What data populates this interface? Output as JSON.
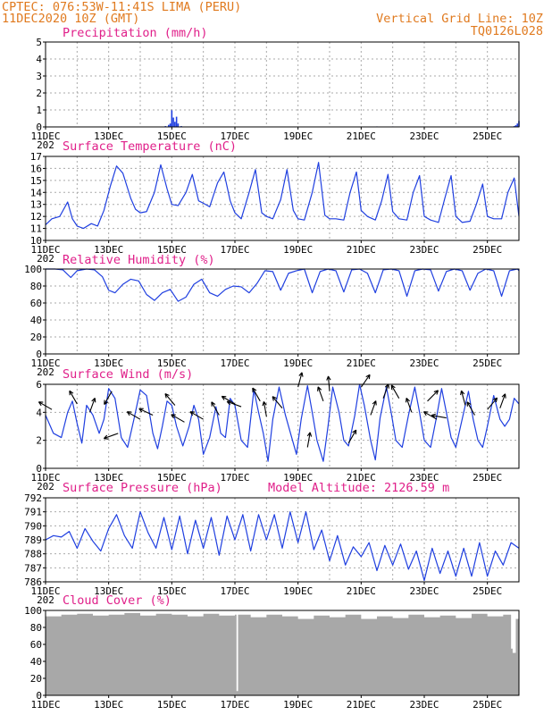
{
  "header": {
    "line1_left": "CPTEC:   076:53W-11:41S  LIMA (PERU)",
    "line2_left": "11DEC2020 10Z (GMT)",
    "line2_right": "Vertical Grid Line: 10Z",
    "line3_right": "TQ0126L028"
  },
  "colors": {
    "header": "#e07a1f",
    "panel_title": "#e0208a",
    "series": "#1f3fe0",
    "cloud": "#a8a8a8",
    "grid": "#aaaaaa"
  },
  "x_axis": {
    "start": "11DEC2020 10Z",
    "end": "26DEC2020 10Z",
    "unit": "days",
    "tick_labels": [
      "11DEC",
      "13DEC",
      "15DEC",
      "17DEC",
      "19DEC",
      "21DEC",
      "23DEC",
      "25DEC"
    ],
    "tick_days": [
      0,
      2,
      4,
      6,
      8,
      10,
      12,
      14
    ],
    "grid_days": [
      0,
      1,
      2,
      3,
      4,
      5,
      6,
      7,
      8,
      9,
      10,
      11,
      12,
      13,
      14,
      15
    ],
    "clipped_year_label": "202"
  },
  "panels": {
    "precipitation": {
      "title": "Precipitation (mm/h)"
    },
    "temperature": {
      "title": "Surface Temperature (nC)"
    },
    "humidity": {
      "title": "Relative Humidity (%)"
    },
    "wind": {
      "title": "Surface Wind (m/s)"
    },
    "pressure": {
      "title": "Surface Pressure (hPa)",
      "extra": "Model Altitude: 2126.59 m"
    },
    "cloud": {
      "title": "Cloud Cover (%)"
    }
  },
  "chart_data": [
    {
      "id": "precipitation",
      "type": "bar",
      "title": "Precipitation (mm/h)",
      "ylim": [
        0,
        5
      ],
      "yticks": [
        0,
        1,
        2,
        3,
        4,
        5
      ],
      "grid": true,
      "x": [
        0.3,
        0.9,
        3.8,
        3.9,
        3.95,
        4.0,
        4.05,
        4.1,
        4.15,
        4.2,
        4.3,
        10.5,
        11.0,
        12.3,
        14.85,
        14.9,
        14.95,
        15.0
      ],
      "values": [
        0.02,
        0.02,
        0.05,
        0.12,
        0.2,
        0.98,
        0.55,
        0.3,
        0.6,
        0.2,
        0.05,
        0.03,
        0.03,
        0.02,
        0.05,
        0.1,
        0.2,
        0.35
      ]
    },
    {
      "id": "temperature",
      "type": "line",
      "title": "Surface Temperature (nC)",
      "ylim": [
        10,
        17
      ],
      "yticks": [
        10,
        11,
        12,
        13,
        14,
        15,
        16,
        17
      ],
      "grid": true,
      "x": [
        0.0,
        0.2,
        0.45,
        0.7,
        0.85,
        1.0,
        1.2,
        1.45,
        1.65,
        1.85,
        2.05,
        2.25,
        2.45,
        2.7,
        2.85,
        3.0,
        3.2,
        3.45,
        3.65,
        3.85,
        4.0,
        4.2,
        4.45,
        4.65,
        4.85,
        5.0,
        5.2,
        5.45,
        5.65,
        5.85,
        6.0,
        6.2,
        6.45,
        6.65,
        6.85,
        7.0,
        7.2,
        7.45,
        7.65,
        7.85,
        8.0,
        8.2,
        8.45,
        8.65,
        8.85,
        9.0,
        9.2,
        9.45,
        9.65,
        9.85,
        10.0,
        10.2,
        10.45,
        10.65,
        10.85,
        11.0,
        11.2,
        11.45,
        11.65,
        11.85,
        12.0,
        12.2,
        12.45,
        12.65,
        12.85,
        13.0,
        13.2,
        13.45,
        13.65,
        13.85,
        14.0,
        14.2,
        14.45,
        14.65,
        14.85,
        15.0
      ],
      "values": [
        11.3,
        11.8,
        12.0,
        13.2,
        11.8,
        11.2,
        11.0,
        11.4,
        11.2,
        12.5,
        14.5,
        16.2,
        15.6,
        13.5,
        12.6,
        12.3,
        12.4,
        14.0,
        16.3,
        14.3,
        13.0,
        12.9,
        14.0,
        15.5,
        13.3,
        13.1,
        12.8,
        14.8,
        15.7,
        13.3,
        12.3,
        11.8,
        14.0,
        15.9,
        12.3,
        12.0,
        11.8,
        13.4,
        15.9,
        12.5,
        11.8,
        11.7,
        14.0,
        16.5,
        12.1,
        11.8,
        11.8,
        11.7,
        14.0,
        15.7,
        12.5,
        12.0,
        11.7,
        13.3,
        15.5,
        12.4,
        11.8,
        11.7,
        14.0,
        15.4,
        12.0,
        11.7,
        11.5,
        13.5,
        15.4,
        12.0,
        11.5,
        11.6,
        13.0,
        14.7,
        12.0,
        11.8,
        11.8,
        14.0,
        15.2,
        12.0
      ]
    },
    {
      "id": "humidity",
      "type": "line",
      "title": "Relative Humidity (%)",
      "ylim": [
        0,
        100
      ],
      "yticks": [
        0,
        20,
        40,
        60,
        80,
        100
      ],
      "grid": true,
      "x": [
        0.0,
        0.3,
        0.55,
        0.8,
        1.0,
        1.3,
        1.55,
        1.8,
        2.0,
        2.2,
        2.45,
        2.7,
        2.95,
        3.2,
        3.45,
        3.7,
        3.95,
        4.2,
        4.45,
        4.7,
        4.95,
        5.2,
        5.45,
        5.7,
        5.95,
        6.2,
        6.45,
        6.7,
        6.95,
        7.2,
        7.45,
        7.7,
        7.95,
        8.2,
        8.45,
        8.7,
        8.95,
        9.2,
        9.45,
        9.7,
        9.95,
        10.2,
        10.45,
        10.7,
        10.95,
        11.2,
        11.45,
        11.7,
        11.95,
        12.2,
        12.45,
        12.7,
        12.95,
        13.2,
        13.45,
        13.7,
        13.95,
        14.2,
        14.45,
        14.7,
        14.95,
        15.0
      ],
      "values": [
        100,
        100,
        99,
        90,
        98,
        100,
        99,
        91,
        75,
        72,
        82,
        88,
        86,
        70,
        63,
        72,
        76,
        62,
        67,
        82,
        88,
        72,
        68,
        76,
        80,
        79,
        72,
        83,
        98,
        97,
        75,
        95,
        98,
        100,
        72,
        97,
        100,
        98,
        73,
        99,
        100,
        95,
        72,
        99,
        100,
        98,
        68,
        98,
        100,
        99,
        74,
        97,
        100,
        98,
        75,
        95,
        100,
        98,
        68,
        98,
        100,
        98
      ]
    },
    {
      "id": "wind",
      "type": "line",
      "title": "Surface Wind (m/s)",
      "ylim": [
        0,
        6
      ],
      "yticks": [
        0,
        2,
        4,
        6
      ],
      "grid": true,
      "x": [
        0.0,
        0.25,
        0.5,
        0.7,
        0.85,
        1.0,
        1.15,
        1.3,
        1.5,
        1.7,
        1.85,
        2.0,
        2.2,
        2.4,
        2.6,
        2.8,
        3.0,
        3.2,
        3.4,
        3.55,
        3.7,
        3.85,
        4.0,
        4.15,
        4.35,
        4.55,
        4.7,
        4.85,
        5.0,
        5.2,
        5.4,
        5.55,
        5.7,
        5.85,
        6.0,
        6.2,
        6.4,
        6.6,
        6.75,
        6.9,
        7.05,
        7.2,
        7.4,
        7.6,
        7.8,
        7.95,
        8.1,
        8.3,
        8.45,
        8.6,
        8.8,
        8.95,
        9.1,
        9.3,
        9.45,
        9.6,
        9.8,
        9.95,
        10.1,
        10.3,
        10.45,
        10.6,
        10.8,
        10.95,
        11.1,
        11.3,
        11.5,
        11.7,
        11.85,
        12.0,
        12.2,
        12.4,
        12.55,
        12.7,
        12.85,
        13.0,
        13.2,
        13.4,
        13.55,
        13.7,
        13.85,
        14.0,
        14.2,
        14.4,
        14.55,
        14.7,
        14.85,
        15.0
      ],
      "values": [
        3.8,
        2.5,
        2.2,
        4.0,
        4.8,
        3.2,
        1.8,
        4.5,
        3.8,
        2.5,
        3.5,
        5.7,
        5.0,
        2.2,
        1.5,
        3.5,
        5.6,
        5.2,
        2.5,
        1.4,
        3.0,
        4.8,
        4.5,
        3.0,
        1.6,
        3.0,
        4.5,
        3.5,
        1.0,
        2.2,
        4.4,
        2.5,
        2.2,
        5.0,
        4.5,
        2.0,
        1.5,
        5.6,
        4.0,
        2.5,
        0.5,
        3.5,
        5.8,
        3.8,
        2.2,
        1.0,
        3.5,
        5.9,
        4.0,
        2.0,
        0.5,
        3.0,
        5.8,
        4.0,
        2.0,
        1.6,
        3.8,
        6.0,
        4.5,
        2.0,
        0.6,
        3.6,
        5.8,
        4.0,
        2.0,
        1.5,
        3.8,
        5.8,
        4.0,
        2.0,
        1.5,
        3.8,
        5.7,
        4.0,
        2.2,
        1.5,
        3.5,
        5.5,
        3.5,
        2.0,
        1.5,
        3.0,
        5.2,
        3.5,
        3.0,
        3.5,
        5.0,
        4.6
      ]
    },
    {
      "id": "pressure",
      "type": "line",
      "title": "Surface Pressure (hPa)",
      "annotation": "Model Altitude: 2126.59 m",
      "ylim": [
        786,
        792
      ],
      "yticks": [
        786,
        787,
        788,
        789,
        790,
        791,
        792
      ],
      "grid": true,
      "x": [
        0.0,
        0.25,
        0.5,
        0.75,
        1.0,
        1.25,
        1.5,
        1.75,
        2.0,
        2.25,
        2.5,
        2.75,
        3.0,
        3.25,
        3.5,
        3.75,
        4.0,
        4.25,
        4.5,
        4.75,
        5.0,
        5.25,
        5.5,
        5.75,
        6.0,
        6.25,
        6.5,
        6.75,
        7.0,
        7.25,
        7.5,
        7.75,
        8.0,
        8.25,
        8.5,
        8.75,
        9.0,
        9.25,
        9.5,
        9.75,
        10.0,
        10.25,
        10.5,
        10.75,
        11.0,
        11.25,
        11.5,
        11.75,
        12.0,
        12.25,
        12.5,
        12.75,
        13.0,
        13.25,
        13.5,
        13.75,
        14.0,
        14.25,
        14.5,
        14.75,
        15.0
      ],
      "values": [
        789.0,
        789.3,
        789.2,
        789.6,
        788.4,
        789.8,
        788.9,
        788.2,
        789.8,
        790.8,
        789.3,
        788.4,
        791.0,
        789.5,
        788.4,
        790.6,
        788.3,
        790.7,
        788.0,
        790.4,
        788.4,
        790.6,
        787.9,
        790.7,
        789.0,
        790.8,
        788.2,
        790.8,
        789.0,
        790.8,
        788.4,
        791.0,
        788.8,
        791.0,
        788.3,
        789.7,
        787.5,
        789.3,
        787.2,
        788.5,
        787.8,
        788.8,
        786.8,
        788.6,
        787.2,
        788.7,
        786.9,
        788.2,
        786.1,
        788.4,
        786.6,
        788.2,
        786.4,
        788.4,
        786.4,
        788.8,
        786.4,
        788.2,
        787.2,
        788.8,
        788.4
      ]
    },
    {
      "id": "cloud",
      "type": "area",
      "title": "Cloud Cover (%)",
      "ylim": [
        0,
        100
      ],
      "yticks": [
        0,
        20,
        40,
        60,
        80,
        100
      ],
      "grid": false,
      "x": [
        0.0,
        0.5,
        1.0,
        1.5,
        2.0,
        2.5,
        3.0,
        3.5,
        4.0,
        4.5,
        5.0,
        5.5,
        6.0,
        6.05,
        6.1,
        6.5,
        7.0,
        7.5,
        8.0,
        8.5,
        9.0,
        9.5,
        10.0,
        10.5,
        11.0,
        11.5,
        12.0,
        12.5,
        13.0,
        13.5,
        14.0,
        14.5,
        14.75,
        14.8,
        14.9,
        15.0
      ],
      "values": [
        93,
        95,
        96,
        94,
        95,
        97,
        94,
        96,
        95,
        93,
        96,
        94,
        95,
        5,
        95,
        92,
        95,
        93,
        90,
        94,
        92,
        95,
        90,
        93,
        91,
        95,
        92,
        94,
        91,
        96,
        93,
        95,
        55,
        50,
        90,
        96
      ]
    }
  ],
  "wind_arrows": {
    "unit": "direction the arrow points, degrees clockwise from up",
    "days": [
      0.2,
      1.0,
      1.4,
      2.1,
      2.3,
      3.0,
      3.4,
      4.1,
      4.4,
      5.0,
      5.5,
      6.0,
      6.2,
      6.8,
      7.0,
      7.5,
      8.0,
      8.3,
      8.8,
      9.0,
      9.6,
      10.0,
      10.3,
      10.7,
      11.2,
      11.6,
      12.1,
      12.4,
      12.7,
      13.3,
      13.6,
      14.0,
      14.4
    ],
    "values": [
      4.2,
      4.6,
      4.0,
      5.5,
      2.5,
      3.5,
      3.8,
      4.5,
      3.3,
      3.5,
      3.8,
      4.6,
      4.4,
      4.8,
      3.7,
      4.3,
      5.8,
      1.5,
      4.8,
      5.5,
      1.8,
      5.8,
      3.8,
      5.0,
      5.0,
      4.0,
      4.8,
      3.5,
      3.6,
      4.5,
      3.8,
      4.2,
      4.3
    ],
    "directions": [
      300,
      330,
      20,
      210,
      250,
      300,
      295,
      320,
      300,
      300,
      330,
      300,
      290,
      330,
      350,
      320,
      15,
      10,
      340,
      355,
      30,
      35,
      20,
      20,
      330,
      340,
      45,
      300,
      280,
      345,
      330,
      40,
      20
    ]
  }
}
